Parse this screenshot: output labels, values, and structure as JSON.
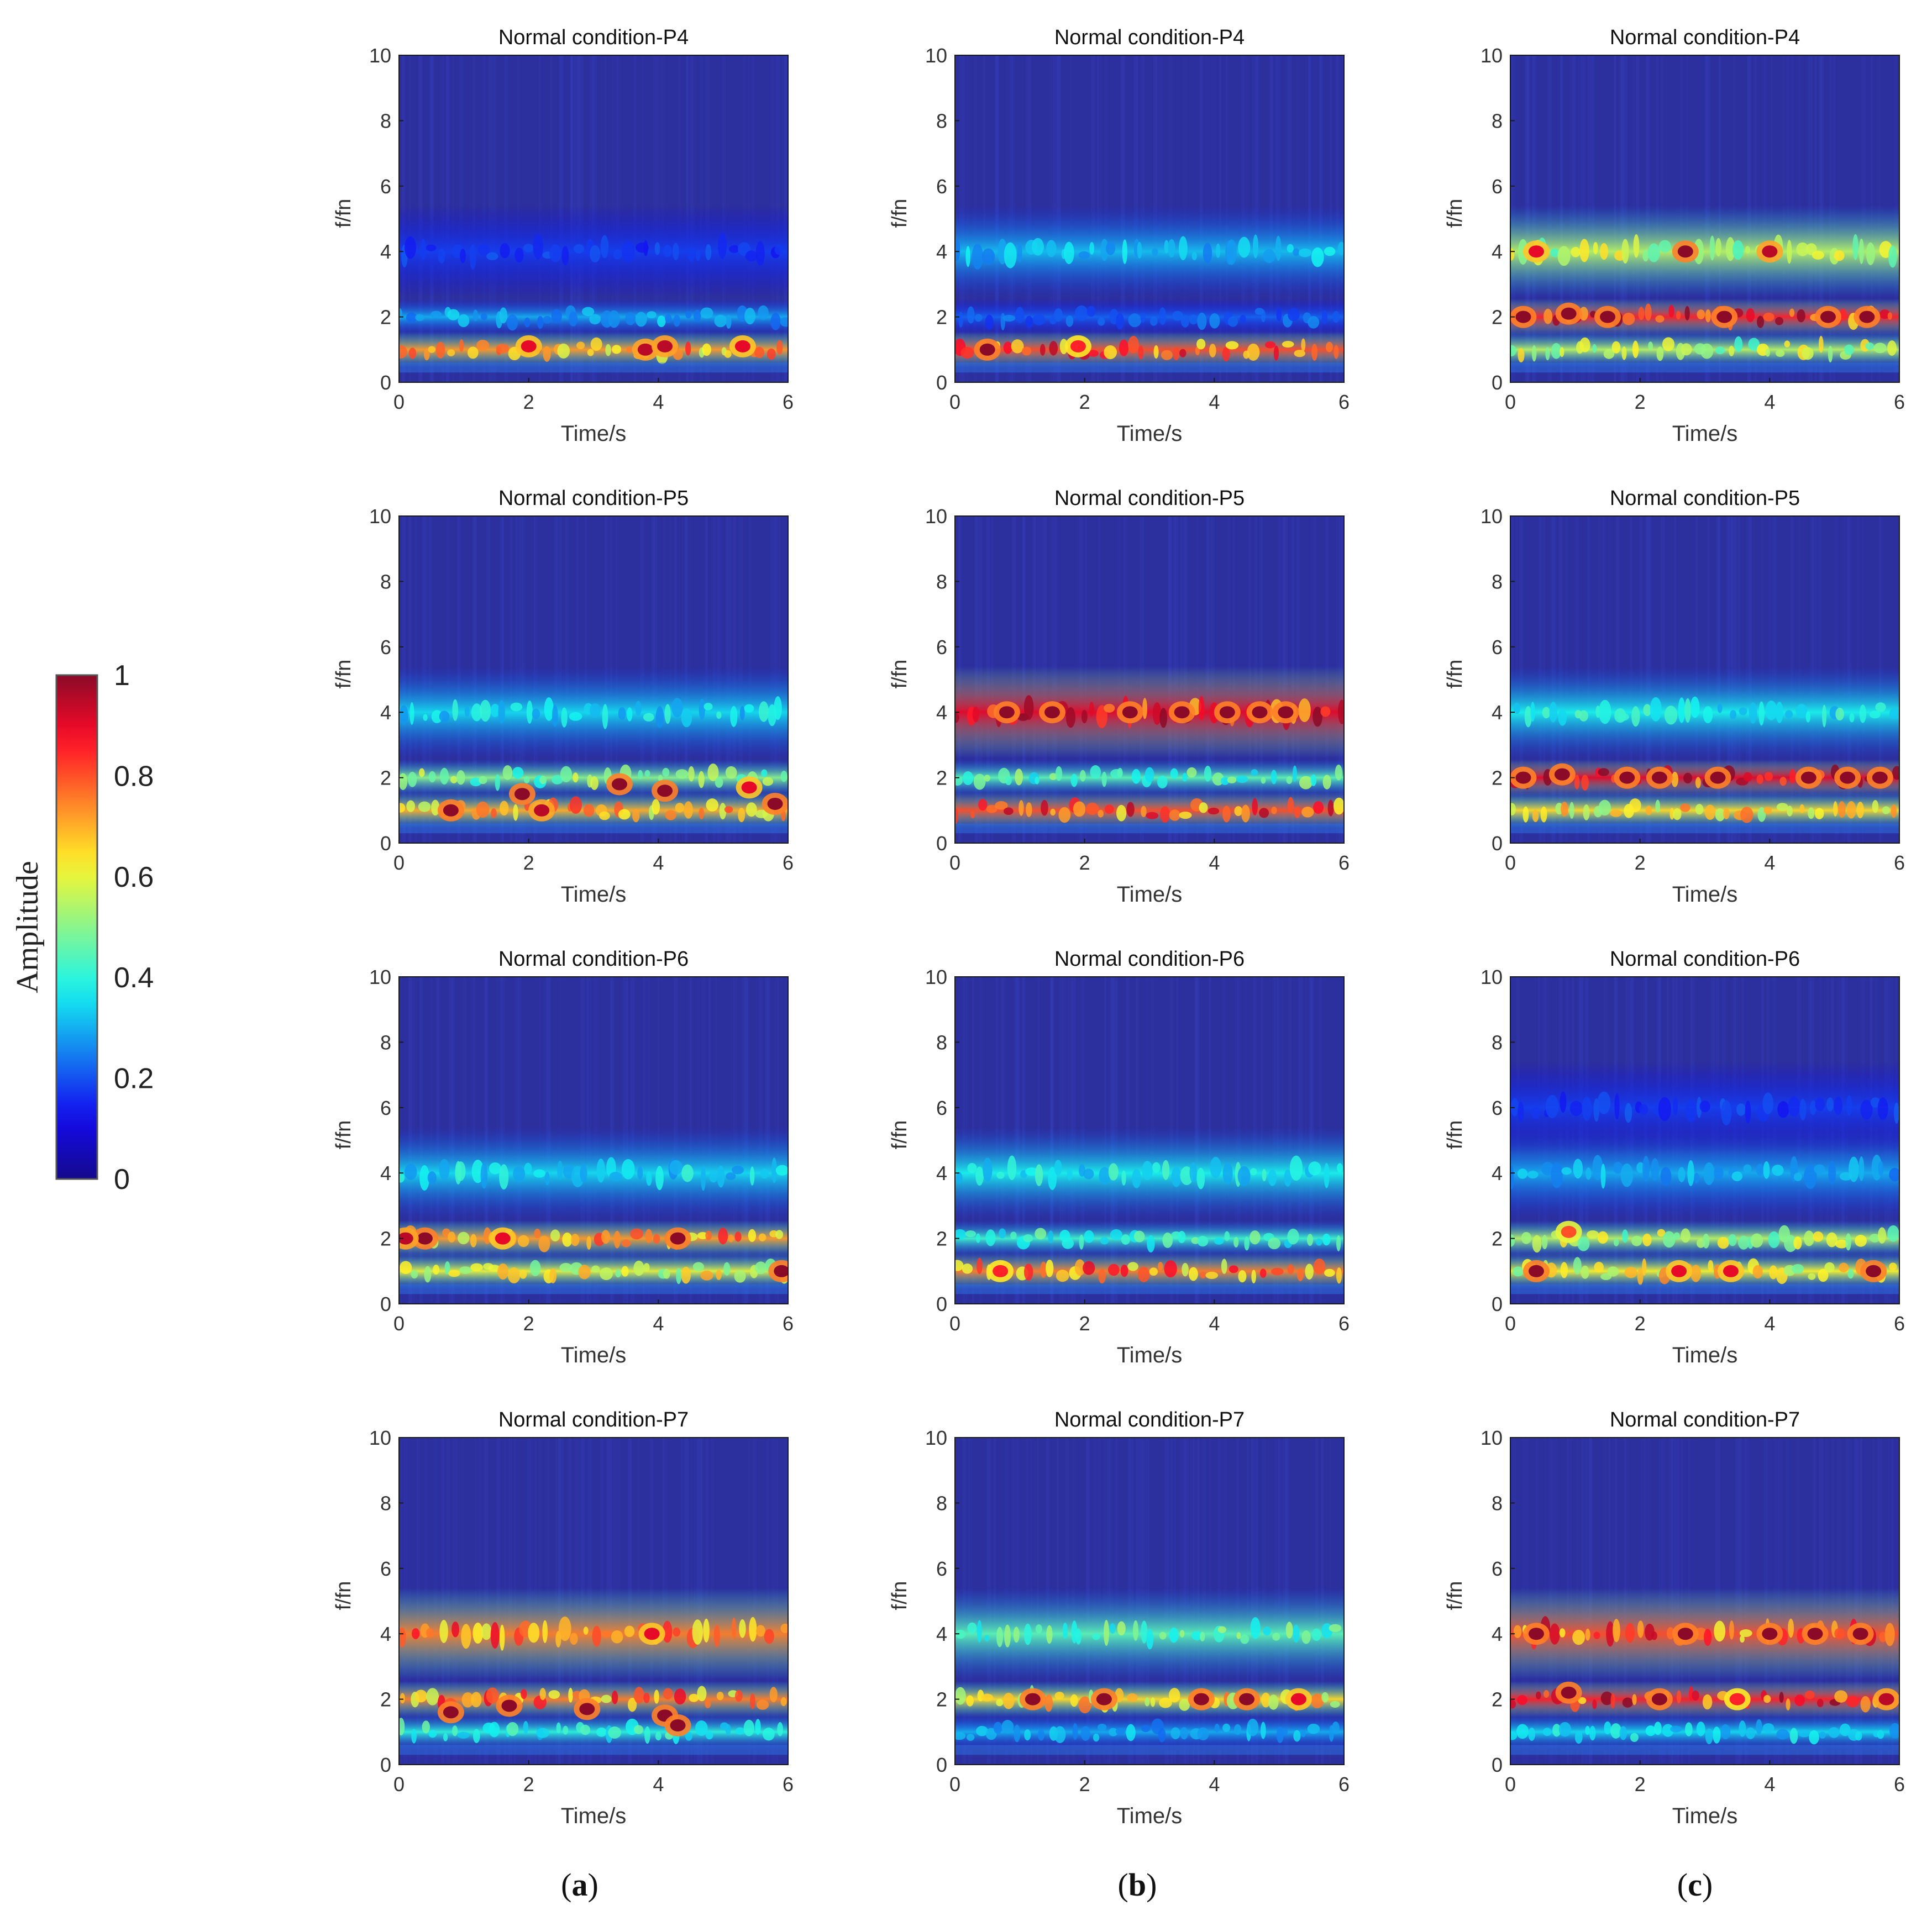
{
  "figure": {
    "captions": [
      {
        "letter": "a"
      },
      {
        "letter": "b"
      },
      {
        "letter": "c"
      }
    ]
  },
  "colorbar": {
    "label": "Amplitude",
    "ticks": [
      "0",
      "0.2",
      "0.4",
      "0.6",
      "0.8",
      "1"
    ],
    "range": [
      0,
      1
    ]
  },
  "colors": {
    "low": "#2c2f9e",
    "mid": "#20b0d8",
    "high": "#ff1a00",
    "frame": "#1a1a1a"
  },
  "chart_data": [
    {
      "type": "heatmap",
      "column": "a",
      "title": "Normal condition-P4",
      "xlabel": "Time/s",
      "ylabel": "f/fn",
      "xlim": [
        0,
        6
      ],
      "ylim": [
        0,
        10
      ],
      "xticks": [
        "0",
        "2",
        "4",
        "6"
      ],
      "yticks": [
        "0",
        "2",
        "4",
        "6",
        "8",
        "10"
      ],
      "bands": [
        {
          "f": 1.0,
          "amp": 0.72
        },
        {
          "f": 2.0,
          "amp": 0.3
        },
        {
          "f": 4.0,
          "amp": 0.18
        }
      ],
      "hotspots": [
        {
          "t": 2.0,
          "f": 1.1,
          "amp": 0.9
        },
        {
          "t": 3.8,
          "f": 1.0,
          "amp": 0.95
        },
        {
          "t": 4.1,
          "f": 1.1,
          "amp": 0.95
        },
        {
          "t": 5.3,
          "f": 1.1,
          "amp": 0.9
        }
      ]
    },
    {
      "type": "heatmap",
      "column": "b",
      "title": "Normal condition-P4",
      "xlabel": "Time/s",
      "ylabel": "f/fn",
      "xlim": [
        0,
        6
      ],
      "ylim": [
        0,
        10
      ],
      "xticks": [
        "0",
        "2",
        "4",
        "6"
      ],
      "yticks": [
        "0",
        "2",
        "4",
        "6",
        "8",
        "10"
      ],
      "bands": [
        {
          "f": 1.0,
          "amp": 0.8
        },
        {
          "f": 2.0,
          "amp": 0.22
        },
        {
          "f": 4.0,
          "amp": 0.32
        }
      ],
      "hotspots": [
        {
          "t": 0.5,
          "f": 1.0,
          "amp": 1.0
        },
        {
          "t": 1.9,
          "f": 1.1,
          "amp": 0.85
        }
      ]
    },
    {
      "type": "heatmap",
      "column": "c",
      "title": "Normal condition-P4",
      "xlabel": "Time/s",
      "ylabel": "f/fn",
      "xlim": [
        0,
        6
      ],
      "ylim": [
        0,
        10
      ],
      "xticks": [
        "0",
        "2",
        "4",
        "6"
      ],
      "yticks": [
        "0",
        "2",
        "4",
        "6",
        "8",
        "10"
      ],
      "bands": [
        {
          "f": 1.0,
          "amp": 0.55
        },
        {
          "f": 2.0,
          "amp": 0.85
        },
        {
          "f": 4.0,
          "amp": 0.55
        }
      ],
      "hotspots": [
        {
          "t": 0.2,
          "f": 2.0,
          "amp": 1.0
        },
        {
          "t": 0.9,
          "f": 2.1,
          "amp": 1.0
        },
        {
          "t": 1.5,
          "f": 2.0,
          "amp": 1.0
        },
        {
          "t": 2.7,
          "f": 4.0,
          "amp": 1.0
        },
        {
          "t": 3.3,
          "f": 2.0,
          "amp": 1.0
        },
        {
          "t": 4.0,
          "f": 4.0,
          "amp": 0.95
        },
        {
          "t": 4.9,
          "f": 2.0,
          "amp": 1.0
        },
        {
          "t": 5.5,
          "f": 2.0,
          "amp": 1.0
        },
        {
          "t": 0.4,
          "f": 4.0,
          "amp": 0.9
        }
      ]
    },
    {
      "type": "heatmap",
      "column": "a",
      "title": "Normal condition-P5",
      "xlabel": "Time/s",
      "ylabel": "f/fn",
      "xlim": [
        0,
        6
      ],
      "ylim": [
        0,
        10
      ],
      "xticks": [
        "0",
        "2",
        "4",
        "6"
      ],
      "yticks": [
        "0",
        "2",
        "4",
        "6",
        "8",
        "10"
      ],
      "bands": [
        {
          "f": 1.0,
          "amp": 0.7
        },
        {
          "f": 2.0,
          "amp": 0.5
        },
        {
          "f": 4.0,
          "amp": 0.35
        }
      ],
      "hotspots": [
        {
          "t": 0.8,
          "f": 1.0,
          "amp": 1.0
        },
        {
          "t": 1.9,
          "f": 1.5,
          "amp": 1.0
        },
        {
          "t": 2.2,
          "f": 1.0,
          "amp": 0.95
        },
        {
          "t": 3.4,
          "f": 1.8,
          "amp": 1.0
        },
        {
          "t": 4.1,
          "f": 1.6,
          "amp": 1.0
        },
        {
          "t": 5.8,
          "f": 1.2,
          "amp": 1.0
        },
        {
          "t": 5.4,
          "f": 1.7,
          "amp": 0.9
        }
      ]
    },
    {
      "type": "heatmap",
      "column": "b",
      "title": "Normal condition-P5",
      "xlabel": "Time/s",
      "ylabel": "f/fn",
      "xlim": [
        0,
        6
      ],
      "ylim": [
        0,
        10
      ],
      "xticks": [
        "0",
        "2",
        "4",
        "6"
      ],
      "yticks": [
        "0",
        "2",
        "4",
        "6",
        "8",
        "10"
      ],
      "bands": [
        {
          "f": 1.0,
          "amp": 0.8
        },
        {
          "f": 2.0,
          "amp": 0.45
        },
        {
          "f": 4.0,
          "amp": 0.9
        }
      ],
      "hotspots": [
        {
          "t": 0.8,
          "f": 4.0,
          "amp": 1.0
        },
        {
          "t": 1.5,
          "f": 4.0,
          "amp": 1.0
        },
        {
          "t": 2.7,
          "f": 4.0,
          "amp": 1.0
        },
        {
          "t": 3.5,
          "f": 4.0,
          "amp": 1.0
        },
        {
          "t": 4.2,
          "f": 4.0,
          "amp": 1.0
        },
        {
          "t": 4.7,
          "f": 4.0,
          "amp": 1.0
        },
        {
          "t": 5.1,
          "f": 4.0,
          "amp": 1.0
        }
      ]
    },
    {
      "type": "heatmap",
      "column": "c",
      "title": "Normal condition-P5",
      "xlabel": "Time/s",
      "ylabel": "f/fn",
      "xlim": [
        0,
        6
      ],
      "ylim": [
        0,
        10
      ],
      "xticks": [
        "0",
        "2",
        "4",
        "6"
      ],
      "yticks": [
        "0",
        "2",
        "4",
        "6",
        "8",
        "10"
      ],
      "bands": [
        {
          "f": 1.0,
          "amp": 0.65
        },
        {
          "f": 2.0,
          "amp": 0.9
        },
        {
          "f": 4.0,
          "amp": 0.38
        }
      ],
      "hotspots": [
        {
          "t": 0.2,
          "f": 2.0,
          "amp": 1.0
        },
        {
          "t": 0.8,
          "f": 2.1,
          "amp": 1.0
        },
        {
          "t": 1.8,
          "f": 2.0,
          "amp": 1.0
        },
        {
          "t": 2.3,
          "f": 2.0,
          "amp": 1.0
        },
        {
          "t": 3.2,
          "f": 2.0,
          "amp": 1.0
        },
        {
          "t": 4.6,
          "f": 2.0,
          "amp": 1.0
        },
        {
          "t": 5.7,
          "f": 2.0,
          "amp": 1.0
        },
        {
          "t": 5.2,
          "f": 2.0,
          "amp": 1.0
        }
      ]
    },
    {
      "type": "heatmap",
      "column": "a",
      "title": "Normal condition-P6",
      "xlabel": "Time/s",
      "ylabel": "f/fn",
      "xlim": [
        0,
        6
      ],
      "ylim": [
        0,
        10
      ],
      "xticks": [
        "0",
        "2",
        "4",
        "6"
      ],
      "yticks": [
        "0",
        "2",
        "4",
        "6",
        "8",
        "10"
      ],
      "bands": [
        {
          "f": 1.0,
          "amp": 0.6
        },
        {
          "f": 2.0,
          "amp": 0.72
        },
        {
          "f": 4.0,
          "amp": 0.35
        }
      ],
      "hotspots": [
        {
          "t": 0.4,
          "f": 2.0,
          "amp": 1.0
        },
        {
          "t": 0.1,
          "f": 2.0,
          "amp": 0.95
        },
        {
          "t": 1.6,
          "f": 2.0,
          "amp": 0.9
        },
        {
          "t": 4.3,
          "f": 2.0,
          "amp": 1.0
        },
        {
          "t": 5.9,
          "f": 1.0,
          "amp": 1.0
        }
      ]
    },
    {
      "type": "heatmap",
      "column": "b",
      "title": "Normal condition-P6",
      "xlabel": "Time/s",
      "ylabel": "f/fn",
      "xlim": [
        0,
        6
      ],
      "ylim": [
        0,
        10
      ],
      "xticks": [
        "0",
        "2",
        "4",
        "6"
      ],
      "yticks": [
        "0",
        "2",
        "4",
        "6",
        "8",
        "10"
      ],
      "bands": [
        {
          "f": 1.0,
          "amp": 0.75
        },
        {
          "f": 2.0,
          "amp": 0.42
        },
        {
          "f": 4.0,
          "amp": 0.38
        }
      ],
      "hotspots": [
        {
          "t": 0.7,
          "f": 1.0,
          "amp": 0.85
        }
      ]
    },
    {
      "type": "heatmap",
      "column": "c",
      "title": "Normal condition-P6",
      "xlabel": "Time/s",
      "ylabel": "f/fn",
      "xlim": [
        0,
        6
      ],
      "ylim": [
        0,
        10
      ],
      "xticks": [
        "0",
        "2",
        "4",
        "6"
      ],
      "yticks": [
        "0",
        "2",
        "4",
        "6",
        "8",
        "10"
      ],
      "bands": [
        {
          "f": 1.0,
          "amp": 0.62
        },
        {
          "f": 2.0,
          "amp": 0.55
        },
        {
          "f": 4.0,
          "amp": 0.3
        },
        {
          "f": 6.0,
          "amp": 0.18
        }
      ],
      "hotspots": [
        {
          "t": 0.4,
          "f": 1.0,
          "amp": 1.0
        },
        {
          "t": 2.6,
          "f": 1.0,
          "amp": 0.9
        },
        {
          "t": 3.4,
          "f": 1.0,
          "amp": 0.9
        },
        {
          "t": 5.6,
          "f": 1.0,
          "amp": 1.0
        },
        {
          "t": 0.9,
          "f": 2.2,
          "amp": 0.8
        }
      ]
    },
    {
      "type": "heatmap",
      "column": "a",
      "title": "Normal condition-P7",
      "xlabel": "Time/s",
      "ylabel": "f/fn",
      "xlim": [
        0,
        6
      ],
      "ylim": [
        0,
        10
      ],
      "xticks": [
        "0",
        "2",
        "4",
        "6"
      ],
      "yticks": [
        "0",
        "2",
        "4",
        "6",
        "8",
        "10"
      ],
      "bands": [
        {
          "f": 1.0,
          "amp": 0.4
        },
        {
          "f": 2.0,
          "amp": 0.75
        },
        {
          "f": 4.0,
          "amp": 0.75
        }
      ],
      "hotspots": [
        {
          "t": 0.8,
          "f": 1.6,
          "amp": 1.0
        },
        {
          "t": 1.7,
          "f": 1.8,
          "amp": 1.0
        },
        {
          "t": 2.9,
          "f": 1.7,
          "amp": 1.0
        },
        {
          "t": 4.1,
          "f": 1.5,
          "amp": 1.0
        },
        {
          "t": 4.3,
          "f": 1.2,
          "amp": 1.0
        },
        {
          "t": 3.9,
          "f": 4.0,
          "amp": 0.9
        }
      ]
    },
    {
      "type": "heatmap",
      "column": "b",
      "title": "Normal condition-P7",
      "xlabel": "Time/s",
      "ylabel": "f/fn",
      "xlim": [
        0,
        6
      ],
      "ylim": [
        0,
        10
      ],
      "xticks": [
        "0",
        "2",
        "4",
        "6"
      ],
      "yticks": [
        "0",
        "2",
        "4",
        "6",
        "8",
        "10"
      ],
      "bands": [
        {
          "f": 1.0,
          "amp": 0.3
        },
        {
          "f": 2.0,
          "amp": 0.65
        },
        {
          "f": 4.0,
          "amp": 0.45
        }
      ],
      "hotspots": [
        {
          "t": 1.2,
          "f": 2.0,
          "amp": 1.0
        },
        {
          "t": 2.3,
          "f": 2.0,
          "amp": 1.0
        },
        {
          "t": 3.8,
          "f": 2.0,
          "amp": 1.0
        },
        {
          "t": 4.5,
          "f": 2.0,
          "amp": 1.0
        },
        {
          "t": 5.3,
          "f": 2.0,
          "amp": 0.9
        }
      ]
    },
    {
      "type": "heatmap",
      "column": "c",
      "title": "Normal condition-P7",
      "xlabel": "Time/s",
      "ylabel": "f/fn",
      "xlim": [
        0,
        6
      ],
      "ylim": [
        0,
        10
      ],
      "xticks": [
        "0",
        "2",
        "4",
        "6"
      ],
      "yticks": [
        "0",
        "2",
        "4",
        "6",
        "8",
        "10"
      ],
      "bands": [
        {
          "f": 1.0,
          "amp": 0.35
        },
        {
          "f": 2.0,
          "amp": 0.85
        },
        {
          "f": 4.0,
          "amp": 0.8
        }
      ],
      "hotspots": [
        {
          "t": 0.4,
          "f": 4.0,
          "amp": 1.0
        },
        {
          "t": 0.9,
          "f": 2.2,
          "amp": 1.0
        },
        {
          "t": 2.3,
          "f": 2.0,
          "amp": 1.0
        },
        {
          "t": 2.7,
          "f": 4.0,
          "amp": 1.0
        },
        {
          "t": 4.0,
          "f": 4.0,
          "amp": 1.0
        },
        {
          "t": 4.7,
          "f": 4.0,
          "amp": 1.0
        },
        {
          "t": 5.4,
          "f": 4.0,
          "amp": 1.0
        },
        {
          "t": 5.8,
          "f": 2.0,
          "amp": 0.95
        },
        {
          "t": 3.5,
          "f": 2.0,
          "amp": 0.85
        }
      ]
    }
  ]
}
